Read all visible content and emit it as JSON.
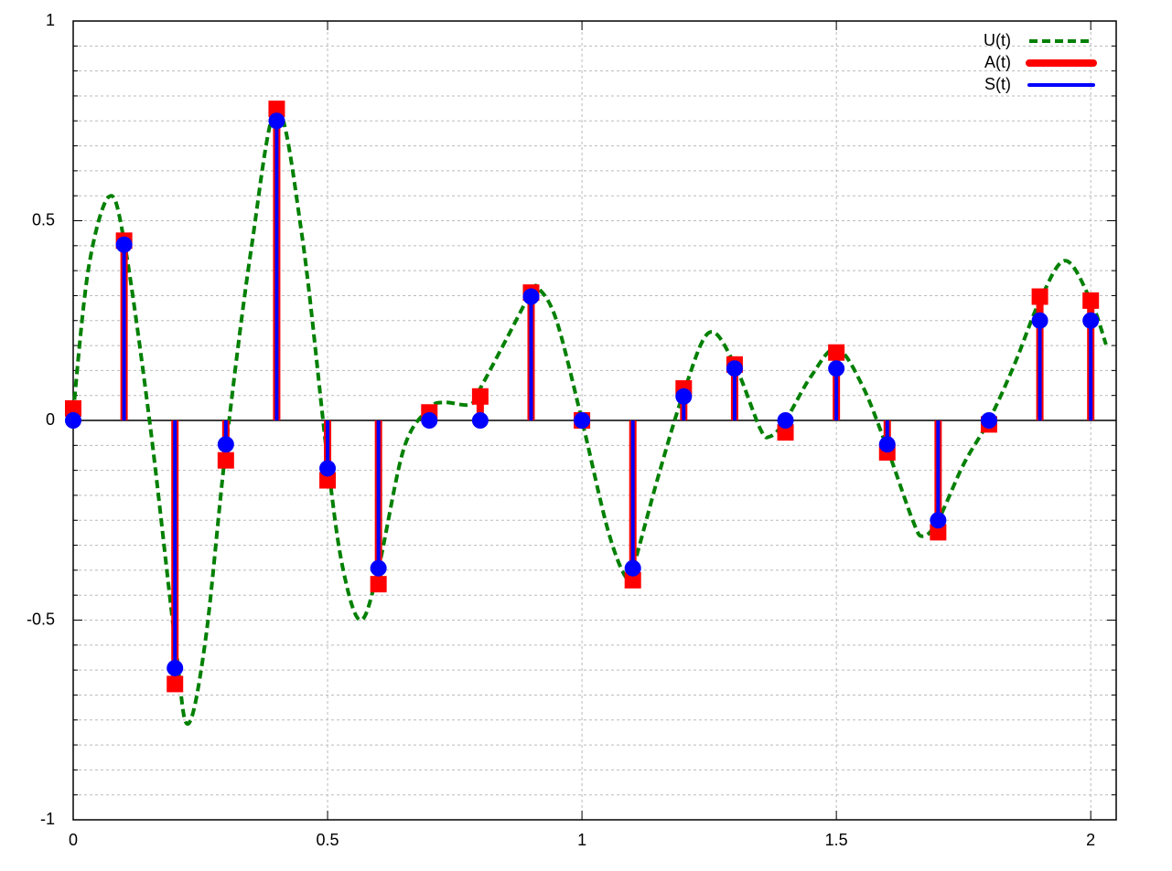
{
  "chart_data": {
    "type": "impulse",
    "x": [
      0,
      0.1,
      0.2,
      0.3,
      0.4,
      0.5,
      0.6,
      0.7,
      0.8,
      0.9,
      1.0,
      1.1,
      1.2,
      1.3,
      1.4,
      1.5,
      1.6,
      1.7,
      1.8,
      1.9,
      2.0
    ],
    "series": [
      {
        "name": "U(t)",
        "color": "#008000",
        "style": "dashed-line",
        "x": [
          0,
          0.03,
          0.07,
          0.1,
          0.15,
          0.2,
          0.225,
          0.26,
          0.3,
          0.35,
          0.4,
          0.45,
          0.5,
          0.53,
          0.565,
          0.6,
          0.65,
          0.7,
          0.73,
          0.78,
          0.8,
          0.85,
          0.9,
          0.915,
          0.95,
          1.0,
          1.05,
          1.085,
          1.1,
          1.15,
          1.2,
          1.25,
          1.3,
          1.35,
          1.37,
          1.4,
          1.45,
          1.5,
          1.55,
          1.6,
          1.65,
          1.67,
          1.7,
          1.75,
          1.8,
          1.85,
          1.9,
          1.95,
          2.0,
          2.03
        ],
        "values": [
          0.02,
          0.38,
          0.56,
          0.45,
          0.0,
          -0.55,
          -0.76,
          -0.55,
          -0.07,
          0.43,
          0.78,
          0.46,
          -0.1,
          -0.37,
          -0.5,
          -0.37,
          -0.07,
          0.03,
          0.045,
          0.04,
          0.08,
          0.2,
          0.32,
          0.33,
          0.25,
          0.0,
          -0.27,
          -0.39,
          -0.37,
          -0.14,
          0.07,
          0.22,
          0.14,
          -0.02,
          -0.04,
          0.0,
          0.11,
          0.18,
          0.09,
          -0.07,
          -0.25,
          -0.29,
          -0.25,
          -0.11,
          0.0,
          0.14,
          0.3,
          0.4,
          0.3,
          0.19
        ]
      },
      {
        "name": "A(t)",
        "color": "#ff0000",
        "style": "impulses",
        "marker": "square",
        "values": [
          0.03,
          0.45,
          -0.66,
          -0.1,
          0.78,
          -0.15,
          -0.41,
          0.02,
          0.06,
          0.32,
          0.0,
          -0.4,
          0.08,
          0.14,
          -0.03,
          0.17,
          -0.08,
          -0.28,
          -0.01,
          0.31,
          0.3
        ]
      },
      {
        "name": "S(t)",
        "color": "#0000ff",
        "style": "impulses",
        "marker": "circle",
        "values": [
          0,
          0.44,
          -0.62,
          -0.06,
          0.75,
          -0.12,
          -0.37,
          0,
          0,
          0.31,
          0,
          -0.37,
          0.06,
          0.13,
          0,
          0.13,
          -0.06,
          -0.25,
          0,
          0.25,
          0.25
        ]
      }
    ],
    "xlim": [
      0,
      2.05
    ],
    "ylim": [
      -1,
      1
    ],
    "xticks": [
      0,
      0.5,
      1,
      1.5,
      2
    ],
    "yticks": [
      -1,
      -0.5,
      0,
      0.5,
      1
    ],
    "yminor": 8,
    "grid": true,
    "zeroaxis": true,
    "legend": "top-right"
  }
}
